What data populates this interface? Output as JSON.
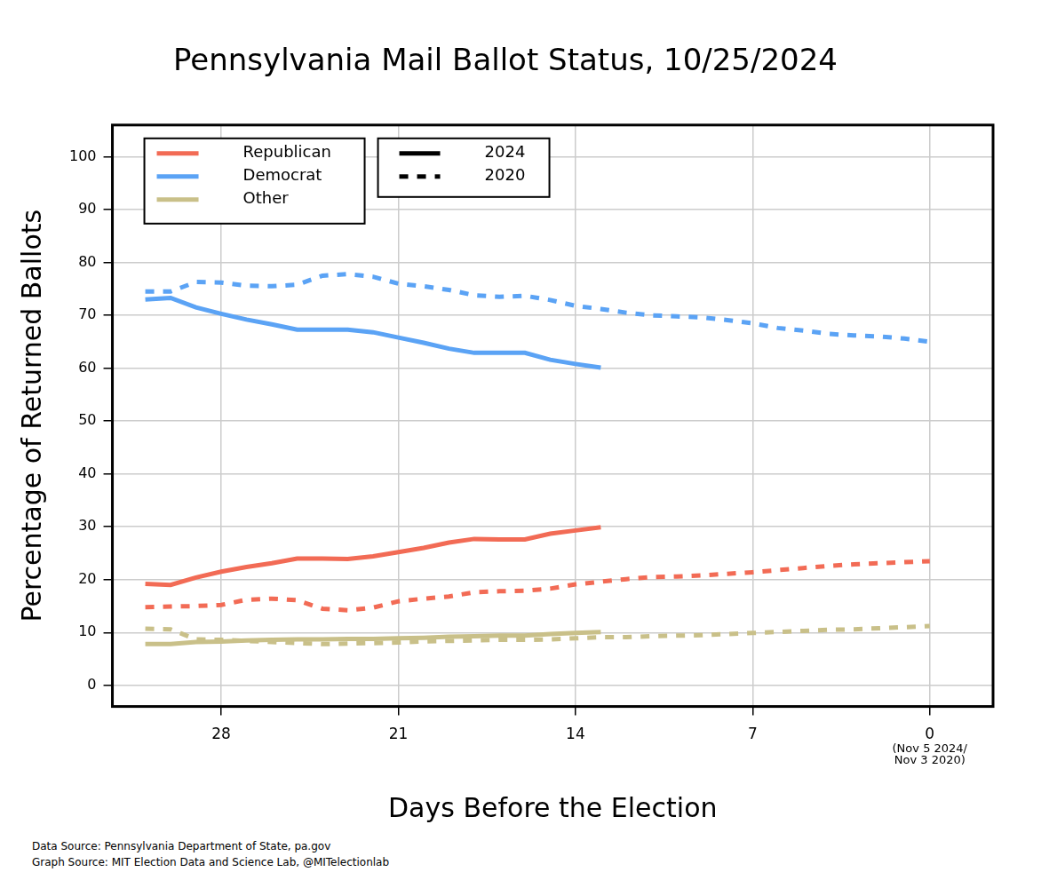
{
  "chart_data": {
    "type": "line",
    "title": "Pennsylvania Mail Ballot Status, 10/25/2024",
    "x_label": "Days Before the Election",
    "y_label": "Percentage of Returned Ballots",
    "caption": [
      "Data Source: Pennsylvania Department of State, pa.gov",
      "Graph Source: MIT Election Data and Science Lab, @MITelectionlab"
    ],
    "annotations": [
      {
        "text": "(Nov 5 2024/\nNov 3 2020)",
        "x": 0
      }
    ],
    "x": [
      31,
      30,
      29,
      28,
      27,
      26,
      25,
      24,
      23,
      22,
      21,
      20,
      19,
      18,
      17,
      16,
      15,
      14,
      13,
      12,
      11,
      10,
      9,
      8,
      7,
      6,
      5,
      4,
      3,
      2,
      1,
      0
    ],
    "series": [
      {
        "name": "Republican",
        "year": "2024",
        "color": "#f26b55",
        "line_style": "solid",
        "values": [
          19.2,
          19,
          20.4,
          21.5,
          22.4,
          23.1,
          24,
          24,
          23.9,
          24.4,
          25.2,
          26,
          27,
          27.7,
          27.6,
          27.6,
          28.7,
          29.3,
          29.9,
          null,
          null,
          null,
          null,
          null,
          null,
          null,
          null,
          null,
          null,
          null,
          null,
          null
        ]
      },
      {
        "name": "Democrat",
        "year": "2024",
        "color": "#5ba3f5",
        "line_style": "solid",
        "values": [
          73,
          73.3,
          71.5,
          70.3,
          69.2,
          68.3,
          67.3,
          67.3,
          67.3,
          66.8,
          65.8,
          64.8,
          63.7,
          62.9,
          62.9,
          62.9,
          61.6,
          60.8,
          60.1,
          null,
          null,
          null,
          null,
          null,
          null,
          null,
          null,
          null,
          null,
          null,
          null,
          null
        ]
      },
      {
        "name": "Other",
        "year": "2024",
        "color": "#c9c089",
        "line_style": "solid",
        "values": [
          7.8,
          7.8,
          8.2,
          8.3,
          8.5,
          8.6,
          8.7,
          8.7,
          8.8,
          8.8,
          8.9,
          9,
          9.2,
          9.3,
          9.4,
          9.4,
          9.7,
          9.9,
          10.1,
          null,
          null,
          null,
          null,
          null,
          null,
          null,
          null,
          null,
          null,
          null,
          null,
          null
        ]
      },
      {
        "name": "Republican",
        "year": "2020",
        "color": "#f26b55",
        "line_style": "dashed",
        "values": [
          14.8,
          14.9,
          15,
          15.2,
          16.2,
          16.4,
          16.1,
          14.5,
          14.2,
          14.7,
          15.9,
          16.4,
          16.8,
          17.6,
          17.8,
          17.9,
          18.3,
          19.1,
          19.6,
          20.1,
          20.5,
          20.6,
          20.8,
          21.1,
          21.4,
          21.8,
          22.2,
          22.6,
          22.9,
          23.1,
          23.3,
          23.5
        ]
      },
      {
        "name": "Democrat",
        "year": "2020",
        "color": "#5ba3f5",
        "line_style": "dashed",
        "values": [
          74.5,
          74.5,
          76.3,
          76.2,
          75.6,
          75.5,
          75.8,
          77.5,
          77.8,
          77.3,
          76,
          75.5,
          74.8,
          73.8,
          73.5,
          73.7,
          72.9,
          71.8,
          71.2,
          70.5,
          70,
          69.8,
          69.6,
          69.1,
          68.5,
          67.6,
          67.1,
          66.5,
          66.2,
          66,
          65.6,
          65
        ]
      },
      {
        "name": "Other",
        "year": "2020",
        "color": "#c9c089",
        "line_style": "dashed",
        "values": [
          10.7,
          10.6,
          8.7,
          8.6,
          8.4,
          8.2,
          8,
          7.8,
          7.9,
          8,
          8.1,
          8.3,
          8.4,
          8.5,
          8.6,
          8.6,
          8.7,
          8.9,
          9.1,
          9.1,
          9.3,
          9.4,
          9.5,
          9.7,
          9.9,
          10.1,
          10.3,
          10.5,
          10.6,
          10.8,
          11,
          11.2
        ]
      }
    ],
    "xlim": [
      32.3,
      -2.5
    ],
    "xticks": [
      28,
      21,
      14,
      7,
      0
    ],
    "ylim": [
      -4,
      106
    ],
    "yticks": [
      0,
      10,
      20,
      30,
      40,
      50,
      60,
      70,
      80,
      90,
      100
    ],
    "grid": true,
    "legend": "top-left"
  }
}
